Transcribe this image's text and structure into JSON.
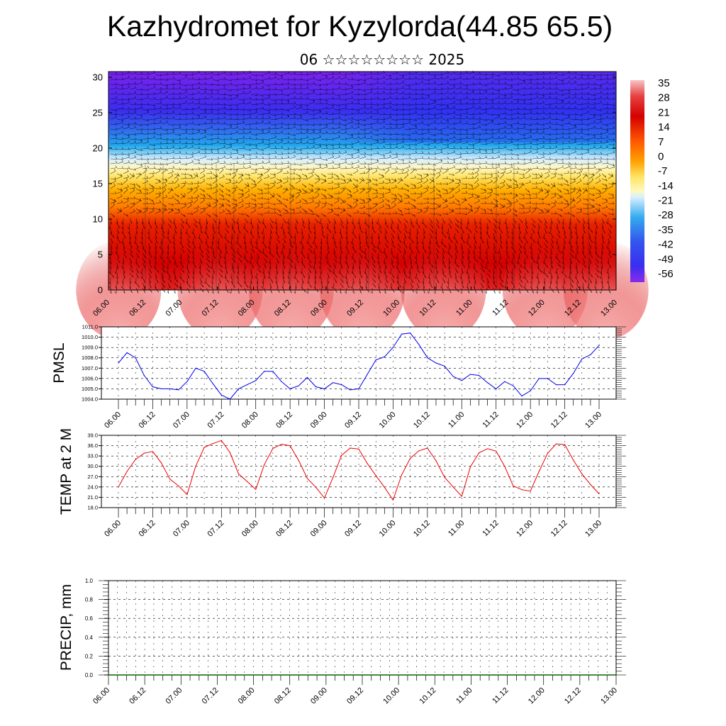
{
  "header": {
    "title": "Kazhydromet for Kyzylorda(44.85 65.5)",
    "subtitle": "06 ☆☆☆☆☆☆☆☆ 2025"
  },
  "time_labels": [
    "06.00",
    "06.12",
    "07.00",
    "07.12",
    "08.00",
    "08.12",
    "09.00",
    "09.12",
    "10.00",
    "10.12",
    "11.00",
    "11.12",
    "12.00",
    "12.12",
    "13.00"
  ],
  "chart_data": [
    {
      "type": "heatmap",
      "description_note": "temperature cross-section with wind barbs",
      "x_categories": [
        "06.00",
        "06.12",
        "07.00",
        "07.12",
        "08.00",
        "08.12",
        "09.00",
        "09.12",
        "10.00",
        "10.12",
        "11.00",
        "11.12",
        "12.00",
        "12.12",
        "13.00"
      ],
      "y_ticks": [
        0,
        5,
        10,
        15,
        20,
        25,
        30
      ],
      "ylim": [
        0,
        30.8
      ],
      "colorbar_labels": [
        "35",
        "28",
        "21",
        "14",
        "7",
        "0",
        "-7",
        "-14",
        "-21",
        "-28",
        "-35",
        "-42",
        "-49",
        "-56"
      ],
      "colors": {
        "hot": "#f4a6a6",
        "warm": "#d40000",
        "orange": "#ff8c00",
        "yellow": "#fff27a",
        "light_blue": "#bfe3f5",
        "cyan": "#22aaee",
        "blue": "#3344ee",
        "violet": "#7a22ee"
      }
    },
    {
      "type": "line",
      "ylabel": "PMSL",
      "y_ticks": [
        "1004.0",
        "1005.0",
        "1006.0",
        "1007.0",
        "1008.0",
        "1009.0",
        "1010.0",
        "1011.0"
      ],
      "ylim": [
        1004.0,
        1011.0
      ],
      "line_color": "#0000ee",
      "x": [
        "06.00",
        "06.03",
        "06.06",
        "06.09",
        "06.12",
        "06.15",
        "06.18",
        "06.21",
        "07.00",
        "07.03",
        "07.06",
        "07.09",
        "07.12",
        "07.15",
        "07.18",
        "07.21",
        "08.00",
        "08.03",
        "08.06",
        "08.09",
        "08.12",
        "08.15",
        "08.18",
        "08.21",
        "09.00",
        "09.03",
        "09.06",
        "09.09",
        "09.12",
        "09.15",
        "09.18",
        "09.21",
        "10.00",
        "10.03",
        "10.06",
        "10.09",
        "10.12",
        "10.15",
        "10.18",
        "10.21",
        "11.00",
        "11.03",
        "11.06",
        "11.09",
        "11.12",
        "11.15",
        "11.18",
        "11.21",
        "12.00",
        "12.03",
        "12.06",
        "12.09",
        "12.12",
        "12.15",
        "12.18",
        "12.21",
        "13.00"
      ],
      "values": [
        1007.5,
        1008.5,
        1008.0,
        1006.3,
        1005.2,
        1005.0,
        1005.0,
        1004.9,
        1005.7,
        1007.0,
        1006.7,
        1005.5,
        1004.4,
        1004.0,
        1005.0,
        1005.4,
        1005.8,
        1006.7,
        1006.7,
        1005.7,
        1005.0,
        1005.3,
        1006.1,
        1005.2,
        1005.0,
        1005.6,
        1005.4,
        1004.9,
        1005.0,
        1006.4,
        1007.8,
        1008.1,
        1009.0,
        1010.3,
        1010.4,
        1009.3,
        1008.0,
        1007.5,
        1007.2,
        1006.2,
        1005.8,
        1006.4,
        1006.3,
        1005.6,
        1005.0,
        1005.7,
        1005.3,
        1004.3,
        1004.8,
        1006.0,
        1006.0,
        1005.4,
        1005.4,
        1006.5,
        1007.9,
        1008.3,
        1009.2
      ]
    },
    {
      "type": "line",
      "ylabel": "TEMP at 2 M",
      "y_ticks": [
        "18.0",
        "21.0",
        "24.0",
        "27.0",
        "30.0",
        "33.0",
        "36.0",
        "39.0"
      ],
      "ylim": [
        18.0,
        39.0
      ],
      "line_color": "#ee0000",
      "x": [
        "06.00",
        "06.03",
        "06.06",
        "06.09",
        "06.12",
        "06.15",
        "06.18",
        "06.21",
        "07.00",
        "07.03",
        "07.06",
        "07.09",
        "07.12",
        "07.15",
        "07.18",
        "07.21",
        "08.00",
        "08.03",
        "08.06",
        "08.09",
        "08.12",
        "08.15",
        "08.18",
        "08.21",
        "09.00",
        "09.03",
        "09.06",
        "09.09",
        "09.12",
        "09.15",
        "09.18",
        "09.21",
        "10.00",
        "10.03",
        "10.06",
        "10.09",
        "10.12",
        "10.15",
        "10.18",
        "10.21",
        "11.00",
        "11.03",
        "11.06",
        "11.09",
        "11.12",
        "11.15",
        "11.18",
        "11.21",
        "12.00",
        "12.03",
        "12.06",
        "12.09",
        "12.12",
        "12.15",
        "12.18",
        "12.21",
        "13.00"
      ],
      "values": [
        24.0,
        28.5,
        32.0,
        33.8,
        34.3,
        31.0,
        26.3,
        24.3,
        21.8,
        30.0,
        35.5,
        36.6,
        37.5,
        34.0,
        27.8,
        25.6,
        23.3,
        30.5,
        35.2,
        36.4,
        36.0,
        31.7,
        26.5,
        23.9,
        20.8,
        26.8,
        33.2,
        35.3,
        35.0,
        30.8,
        27.3,
        23.9,
        20.2,
        27.5,
        32.3,
        34.5,
        35.3,
        31.6,
        26.8,
        24.0,
        21.3,
        29.8,
        33.9,
        35.1,
        34.4,
        30.0,
        24.3,
        23.2,
        22.8,
        28.5,
        33.8,
        36.5,
        36.3,
        31.8,
        27.8,
        24.7,
        22.0
      ]
    },
    {
      "type": "bar",
      "ylabel": "PRECIP, mm",
      "y_ticks": [
        "0.0",
        "0.2",
        "0.4",
        "0.6",
        "0.8",
        "1.0"
      ],
      "ylim": [
        0,
        1.0
      ],
      "values": [
        0,
        0,
        0,
        0,
        0,
        0,
        0,
        0,
        0,
        0,
        0,
        0,
        0,
        0,
        0,
        0,
        0,
        0,
        0,
        0,
        0,
        0,
        0,
        0,
        0,
        0,
        0,
        0,
        0,
        0,
        0,
        0,
        0,
        0,
        0,
        0,
        0,
        0,
        0,
        0,
        0,
        0,
        0,
        0,
        0,
        0,
        0,
        0,
        0,
        0,
        0,
        0,
        0,
        0,
        0,
        0,
        0
      ]
    }
  ]
}
